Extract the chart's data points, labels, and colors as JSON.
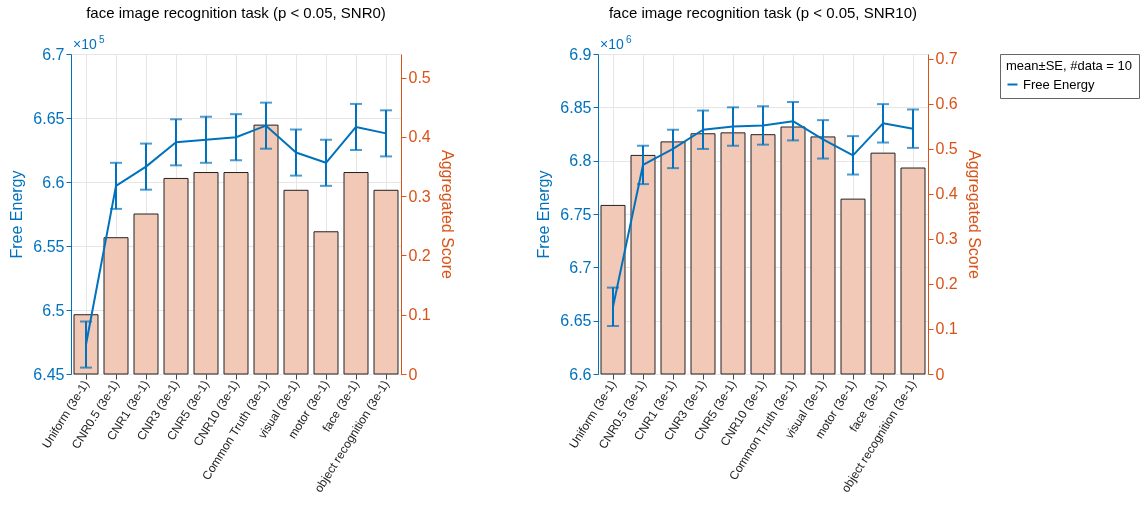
{
  "chart_data": [
    {
      "type": "bar",
      "title": "face image recognition task (p < 0.05, SNR0)",
      "ylabel": "Free Energy",
      "y2label": "Aggregated Score",
      "categories": [
        "Uniform (3e-1)",
        "CNR0.5 (3e-1)",
        "CNR1 (3e-1)",
        "CNR3 (3e-1)",
        "CNR5 (3e-1)",
        "CNR10 (3e-1)",
        "Common Truth (3e-1)",
        "visual (3e-1)",
        "motor (3e-1)",
        "face (3e-1)",
        "object recognition (3e-1)"
      ],
      "series": [
        {
          "axis": "y2",
          "color": "#f2c8b6",
          "values": [
            0.1,
            0.23,
            0.27,
            0.33,
            0.34,
            0.34,
            0.42,
            0.31,
            0.24,
            0.34,
            0.31
          ]
        },
        {
          "type": "line",
          "color": "#0072bd",
          "values": [
            6.473,
            6.597,
            6.612,
            6.631,
            6.633,
            6.635,
            6.644,
            6.623,
            6.615,
            6.643,
            6.638
          ],
          "errors": [
            0.018,
            0.018,
            0.018,
            0.018,
            0.018,
            0.018,
            0.018,
            0.018,
            0.018,
            0.018,
            0.018
          ]
        }
      ],
      "ylim": [
        6.45,
        6.7
      ],
      "yticks": [
        6.45,
        6.5,
        6.55,
        6.6,
        6.65,
        6.7
      ],
      "y2lim": [
        0,
        0.54
      ],
      "y2ticks": [
        0,
        0.1,
        0.2,
        0.3,
        0.4,
        0.5
      ],
      "annotations": [
        "×10$^{5}$"
      ],
      "grid": true
    },
    {
      "type": "bar",
      "title": "face image recognition task (p < 0.05, SNR10)",
      "ylabel": "Free Energy",
      "y2label": "Aggregated Score",
      "categories": [
        "Uniform (3e-1)",
        "CNR0.5 (3e-1)",
        "CNR1 (3e-1)",
        "CNR3 (3e-1)",
        "CNR5 (3e-1)",
        "CNR10 (3e-1)",
        "Common Truth (3e-1)",
        "visual (3e-1)",
        "motor (3e-1)",
        "face (3e-1)",
        "object recognition (3e-1)"
      ],
      "series": [
        {
          "axis": "y2",
          "color": "#f2c8b6",
          "values": [
            0.374,
            0.485,
            0.515,
            0.533,
            0.535,
            0.531,
            0.548,
            0.526,
            0.388,
            0.49,
            0.457
          ]
        },
        {
          "name": "Free Energy",
          "type": "line",
          "color": "#0072bd",
          "values": [
            6.663,
            6.796,
            6.811,
            6.829,
            6.832,
            6.833,
            6.837,
            6.82,
            6.805,
            6.835,
            6.83
          ],
          "errors": [
            0.018,
            0.018,
            0.018,
            0.018,
            0.018,
            0.018,
            0.018,
            0.018,
            0.018,
            0.018,
            0.018
          ]
        }
      ],
      "ylim": [
        6.6,
        6.9
      ],
      "yticks": [
        6.6,
        6.65,
        6.7,
        6.75,
        6.8,
        6.85,
        6.9
      ],
      "y2lim": [
        0,
        0.71
      ],
      "y2ticks": [
        0,
        0.1,
        0.2,
        0.3,
        0.4,
        0.5,
        0.6,
        0.7
      ],
      "annotations": [
        "×10$^{6}$"
      ],
      "grid": true,
      "legend": "right",
      "legend_title": "mean±SE, #data = 10"
    }
  ]
}
